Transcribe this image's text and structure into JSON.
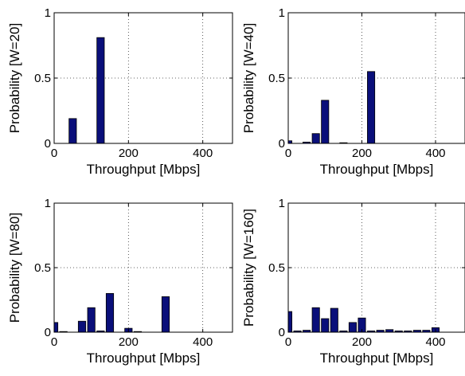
{
  "chart_data": [
    {
      "type": "bar",
      "xlabel": "Throughput [Mbps]",
      "ylabel": "Probability [W=20]",
      "xlim": [
        0,
        480
      ],
      "ylim": [
        0,
        1
      ],
      "xticks": [
        0,
        200,
        400
      ],
      "yticks": [
        0,
        0.5,
        1
      ],
      "ytick_labels": [
        "0",
        "0.5",
        "1"
      ],
      "grid": true,
      "bar_color": "#0a0f7a",
      "bar_width": 20,
      "x": [
        50,
        125
      ],
      "values": [
        0.19,
        0.81
      ]
    },
    {
      "type": "bar",
      "xlabel": "Throughput [Mbps]",
      "ylabel": "Probability [W=40]",
      "xlim": [
        0,
        480
      ],
      "ylim": [
        0,
        1
      ],
      "xticks": [
        0,
        200,
        400
      ],
      "yticks": [
        0,
        0.5,
        1
      ],
      "ytick_labels": [
        "0",
        "0.5",
        "1"
      ],
      "grid": true,
      "bar_color": "#0a0f7a",
      "bar_width": 20,
      "x": [
        0,
        50,
        75,
        100,
        150,
        225
      ],
      "values": [
        0.02,
        0.01,
        0.075,
        0.33,
        0.005,
        0.55
      ]
    },
    {
      "type": "bar",
      "xlabel": "Throughput [Mbps]",
      "ylabel": "Probability [W=80]",
      "xlim": [
        0,
        480
      ],
      "ylim": [
        0,
        1
      ],
      "xticks": [
        0,
        200,
        400
      ],
      "yticks": [
        0,
        0.5,
        1
      ],
      "ytick_labels": [
        "0",
        "0.5",
        "1"
      ],
      "grid": true,
      "bar_color": "#0a0f7a",
      "bar_width": 20,
      "x": [
        0,
        25,
        75,
        100,
        125,
        150,
        200,
        225,
        300
      ],
      "values": [
        0.075,
        0.005,
        0.085,
        0.19,
        0.01,
        0.3,
        0.03,
        0.005,
        0.275
      ]
    },
    {
      "type": "bar",
      "xlabel": "Throughput [Mbps]",
      "ylabel": "Probability [W=160]",
      "xlim": [
        0,
        480
      ],
      "ylim": [
        0,
        1
      ],
      "xticks": [
        0,
        200,
        400
      ],
      "yticks": [
        0,
        0.5,
        1
      ],
      "ytick_labels": [
        "0",
        "0.5",
        "1"
      ],
      "grid": true,
      "bar_color": "#0a0f7a",
      "bar_width": 20,
      "x": [
        0,
        25,
        50,
        75,
        100,
        125,
        150,
        175,
        200,
        225,
        250,
        275,
        300,
        325,
        350,
        375,
        400
      ],
      "values": [
        0.16,
        0.01,
        0.015,
        0.19,
        0.105,
        0.185,
        0.01,
        0.075,
        0.11,
        0.01,
        0.015,
        0.02,
        0.01,
        0.01,
        0.015,
        0.015,
        0.035
      ]
    }
  ]
}
